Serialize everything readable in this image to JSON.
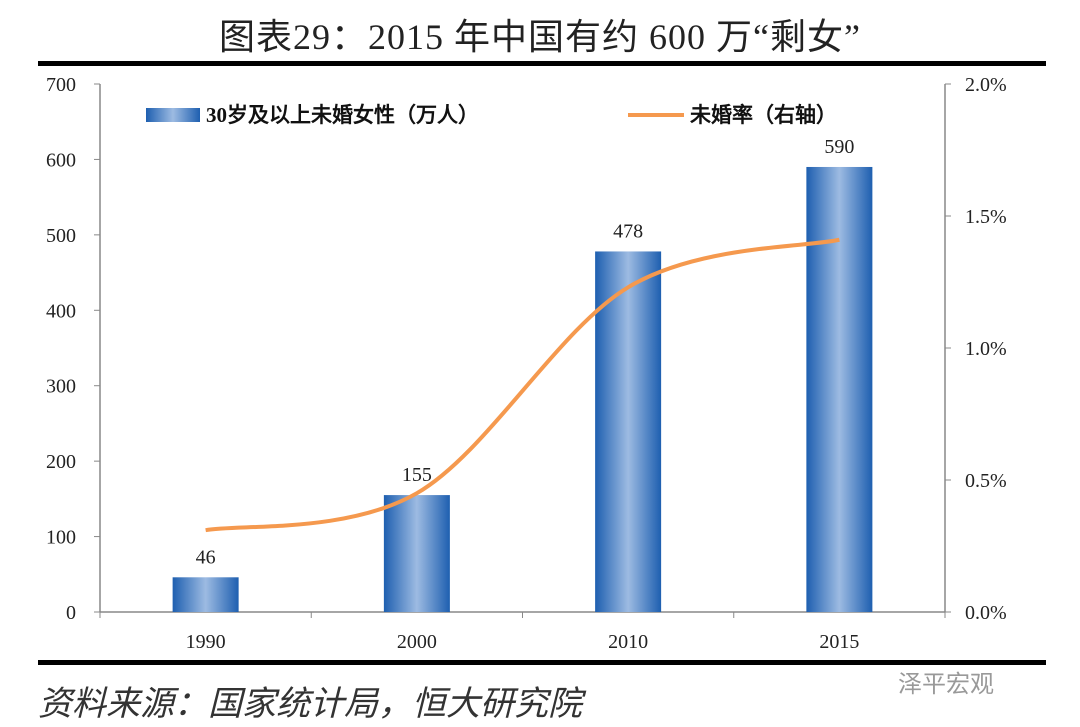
{
  "title": "图表29：2015 年中国有约 600 万“剩女”",
  "source": "资料来源：国家统计局，恒大研究院",
  "watermark": "泽平宏观",
  "chart_data": {
    "type": "bar+line",
    "categories": [
      "1990",
      "2000",
      "2010",
      "2015"
    ],
    "series": [
      {
        "name": "30岁及以上未婚女性（万人）",
        "type": "bar",
        "axis": "left",
        "values": [
          46,
          155,
          478,
          590
        ],
        "color": "#2E6DB8"
      },
      {
        "name": "未婚率（右轴）",
        "type": "line",
        "axis": "right",
        "values": [
          0.31,
          0.45,
          1.23,
          1.41
        ],
        "unit": "%",
        "color": "#F5994E"
      }
    ],
    "data_labels": [
      "46",
      "155",
      "478",
      "590"
    ],
    "left_axis": {
      "ylim": [
        0,
        700
      ],
      "ticks": [
        "0",
        "100",
        "200",
        "300",
        "400",
        "500",
        "600",
        "700"
      ]
    },
    "right_axis": {
      "ylim": [
        0,
        2.0
      ],
      "ticks": [
        "0.0%",
        "0.5%",
        "1.0%",
        "1.5%",
        "2.0%"
      ]
    },
    "grid": false,
    "legend": "top"
  }
}
